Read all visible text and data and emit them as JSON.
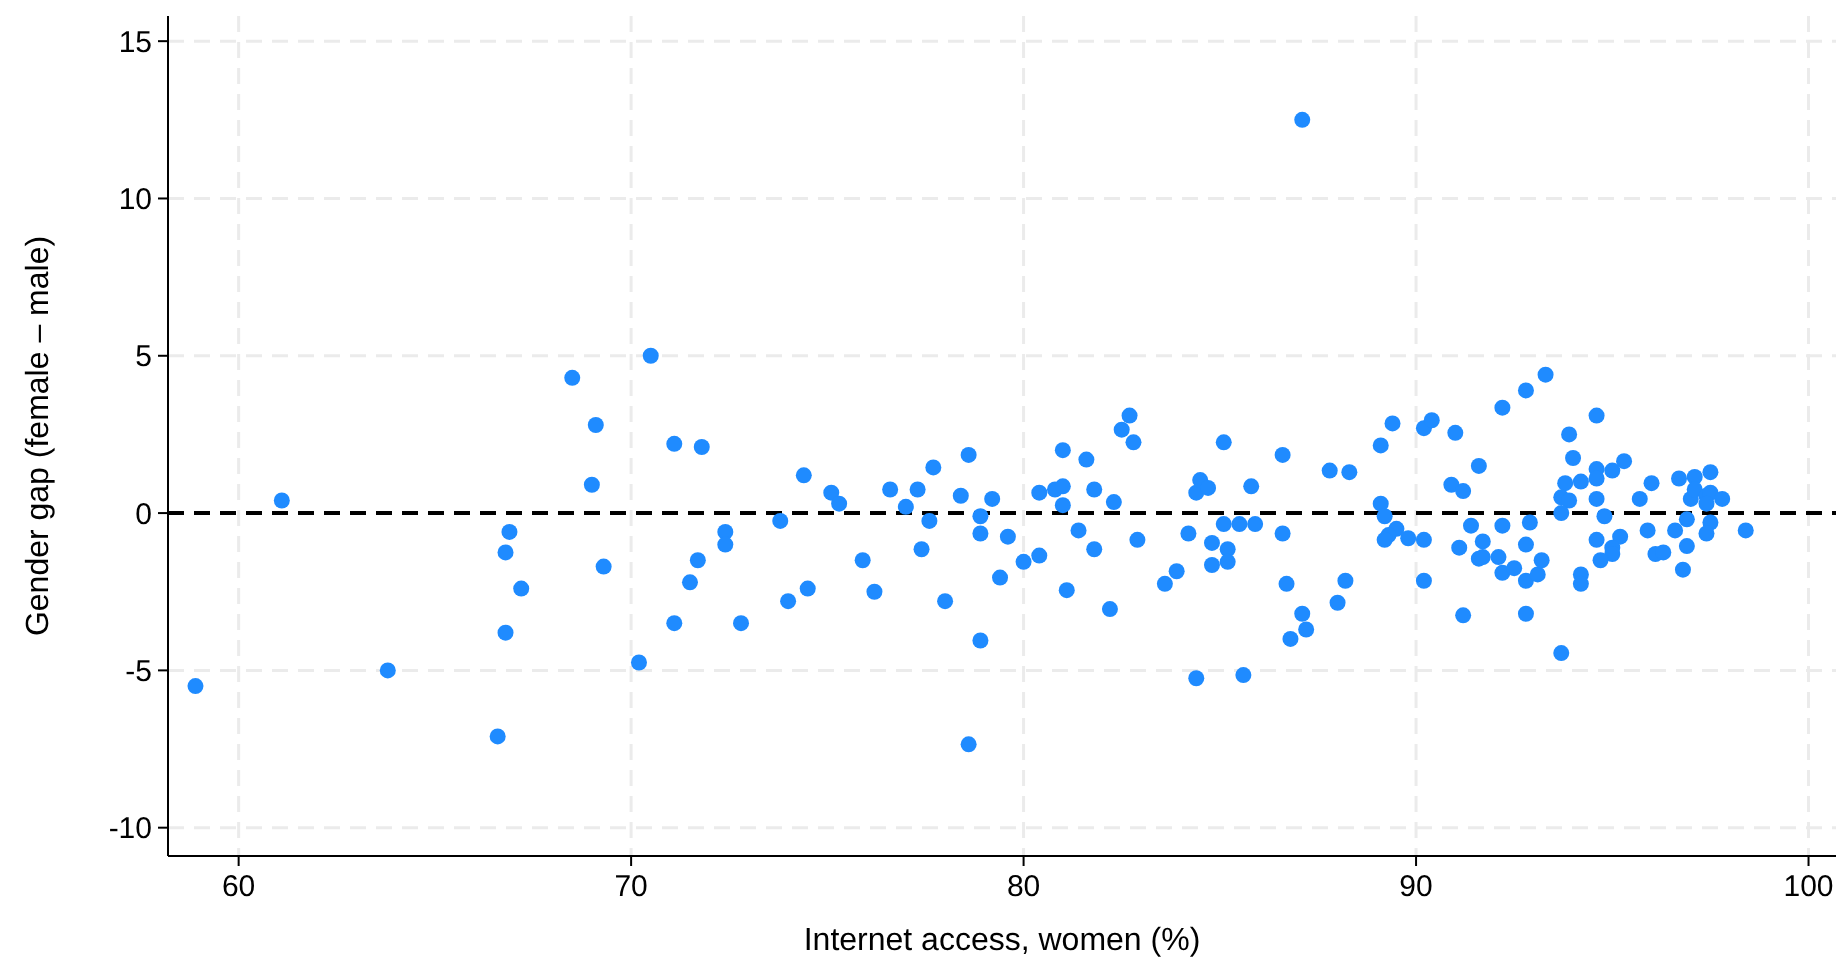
{
  "chart_data": {
    "type": "scatter",
    "xlabel": "Internet access, women (%)",
    "ylabel": "Gender gap (female – male)",
    "xlim": [
      58.2,
      100.7
    ],
    "ylim": [
      -10.9,
      15.8
    ],
    "xticks": [
      60,
      70,
      80,
      90,
      100
    ],
    "yticks": [
      -10,
      -5,
      0,
      5,
      10,
      15
    ],
    "grid": true,
    "marker": "circle",
    "ref_lines": [
      {
        "axis": "y",
        "value": 0,
        "color": "#000000",
        "line_style": "dashed"
      }
    ],
    "series": [
      {
        "color": "#1f8bff",
        "x": [
          58.9,
          61.1,
          63.8,
          66.6,
          66.9,
          66.8,
          67.2,
          66.8,
          68.5,
          69.1,
          69.0,
          69.3,
          70.5,
          70.2,
          71.1,
          71.8,
          72.4,
          72.4,
          71.7,
          71.5,
          71.1,
          72.8,
          74.4,
          73.8,
          74.0,
          74.5,
          75.1,
          75.3,
          75.9,
          76.2,
          76.6,
          77.0,
          77.3,
          77.7,
          77.6,
          77.4,
          78.0,
          78.4,
          78.6,
          78.9,
          78.9,
          79.2,
          79.6,
          79.4,
          78.9,
          78.6,
          80.0,
          80.4,
          80.4,
          80.8,
          81.0,
          81.0,
          81.0,
          81.4,
          81.1,
          81.6,
          81.8,
          81.8,
          82.3,
          82.2,
          82.5,
          82.7,
          82.8,
          82.9,
          83.6,
          83.9,
          84.2,
          84.4,
          84.5,
          84.7,
          84.4,
          84.8,
          84.8,
          85.2,
          85.2,
          85.1,
          85.1,
          85.5,
          85.6,
          85.8,
          85.9,
          86.6,
          86.6,
          86.7,
          87.1,
          87.2,
          86.8,
          87.8,
          88.3,
          88.0,
          88.2,
          89.1,
          89.4,
          89.1,
          89.2,
          89.5,
          89.3,
          89.2,
          89.8,
          90.2,
          90.2,
          90.2,
          90.4,
          91.0,
          90.9,
          91.2,
          91.4,
          91.1,
          91.6,
          91.2,
          91.6,
          91.7,
          91.7,
          92.1,
          92.2,
          92.2,
          92.5,
          92.2,
          92.8,
          93.3,
          92.9,
          92.8,
          92.8,
          93.1,
          93.2,
          92.8,
          93.7,
          93.9,
          94.0,
          93.8,
          94.2,
          93.7,
          93.9,
          93.7,
          94.2,
          94.2,
          94.6,
          94.6,
          94.6,
          95.0,
          95.3,
          94.6,
          94.8,
          94.6,
          95.2,
          95.0,
          95.0,
          94.7,
          95.7,
          96.0,
          95.9,
          96.1,
          96.3,
          96.7,
          97.1,
          97.5,
          97.0,
          97.1,
          97.4,
          97.5,
          97.8,
          97.4,
          96.9,
          96.6,
          97.5,
          97.4,
          96.9,
          96.8,
          98.4,
          87.1
        ],
        "values": [
          -5.5,
          0.4,
          -5.0,
          -7.1,
          -0.6,
          -1.25,
          -2.4,
          -3.8,
          4.3,
          2.8,
          0.9,
          -1.7,
          5.0,
          -4.75,
          2.2,
          2.1,
          -0.6,
          -1.0,
          -1.5,
          -2.2,
          -3.5,
          -3.5,
          1.2,
          -0.25,
          -2.8,
          -2.4,
          0.65,
          0.3,
          -1.5,
          -2.5,
          0.75,
          0.2,
          0.75,
          1.45,
          -0.25,
          -1.15,
          -2.8,
          0.55,
          1.85,
          -0.1,
          -0.65,
          0.45,
          -0.75,
          -2.05,
          -4.05,
          -7.35,
          -1.55,
          -1.35,
          0.65,
          0.75,
          0.85,
          2.0,
          0.25,
          -0.55,
          -2.45,
          1.7,
          0.75,
          -1.15,
          0.35,
          -3.05,
          2.65,
          3.1,
          2.25,
          -0.85,
          -2.25,
          -1.85,
          -0.65,
          0.65,
          1.05,
          0.8,
          -5.25,
          -0.95,
          -1.65,
          -1.15,
          -1.55,
          -0.35,
          2.25,
          -0.35,
          -5.15,
          0.85,
          -0.35,
          1.85,
          -0.65,
          -2.25,
          -3.2,
          -3.7,
          -4.0,
          1.35,
          1.3,
          -2.85,
          -2.15,
          2.15,
          2.85,
          0.3,
          -0.1,
          -0.5,
          -0.7,
          -0.85,
          -0.8,
          -0.85,
          -2.15,
          2.7,
          2.95,
          2.55,
          0.9,
          0.7,
          -0.4,
          -1.1,
          -1.45,
          -3.25,
          1.5,
          -0.9,
          -1.4,
          -1.4,
          -0.4,
          -1.9,
          -1.75,
          3.35,
          3.9,
          4.4,
          -0.3,
          -1.0,
          -2.15,
          -1.95,
          -1.5,
          -3.2,
          -4.45,
          2.5,
          1.75,
          0.95,
          1.0,
          0.5,
          0.4,
          0.0,
          -1.95,
          -2.25,
          3.1,
          1.4,
          1.1,
          1.35,
          1.65,
          0.45,
          -0.1,
          -0.85,
          -0.75,
          -1.1,
          -1.3,
          -1.5,
          0.45,
          0.95,
          -0.55,
          -1.3,
          -1.25,
          1.1,
          1.15,
          1.3,
          0.45,
          0.75,
          0.55,
          0.65,
          0.45,
          0.3,
          -0.2,
          -0.55,
          -0.3,
          -0.65,
          -1.05,
          -1.8,
          -0.55,
          12.5
        ]
      }
    ]
  }
}
